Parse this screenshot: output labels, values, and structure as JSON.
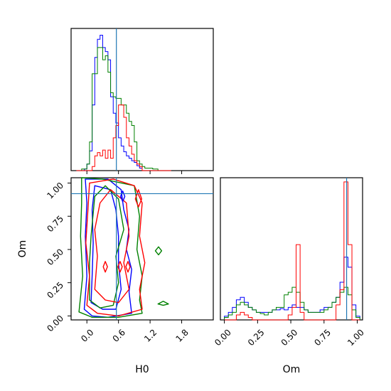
{
  "chart_data": {
    "type": "corner",
    "parameters": [
      "H0",
      "Om"
    ],
    "truth": {
      "H0": 0.56,
      "Om": 0.92
    },
    "colors": {
      "series_red": "#ff0000",
      "series_blue": "#0000ff",
      "series_green": "#008000",
      "truth": "#1f77b4"
    },
    "hist_H0": {
      "xlim": [
        -0.3,
        2.4
      ],
      "ticks": [
        "0.0",
        "0.6",
        "1.2",
        "1.8"
      ],
      "bins": [
        -0.2,
        -0.15,
        -0.1,
        -0.05,
        0.0,
        0.05,
        0.1,
        0.15,
        0.2,
        0.25,
        0.3,
        0.35,
        0.4,
        0.45,
        0.5,
        0.55,
        0.6,
        0.65,
        0.7,
        0.75,
        0.8,
        0.85,
        0.9,
        0.95,
        1.0,
        1.05,
        1.1,
        1.15,
        1.2,
        1.25,
        1.3,
        1.35,
        1.4,
        1.45,
        1.5,
        1.55,
        1.6
      ],
      "series": [
        {
          "color": "#0000ff",
          "counts": [
            0,
            0,
            0,
            2,
            8,
            24,
            80,
            138,
            160,
            165,
            150,
            145,
            135,
            90,
            70,
            58,
            40,
            30,
            23,
            18,
            15,
            12,
            10,
            6,
            3,
            0,
            0,
            0,
            0,
            0,
            0,
            0,
            0,
            0,
            0,
            0
          ]
        },
        {
          "color": "#008000",
          "counts": [
            0,
            0,
            2,
            2,
            8,
            35,
            118,
            118,
            150,
            150,
            135,
            140,
            120,
            95,
            90,
            88,
            88,
            80,
            80,
            70,
            60,
            55,
            35,
            12,
            8,
            5,
            3,
            3,
            3,
            2,
            2,
            0,
            0,
            0,
            0,
            0
          ]
        },
        {
          "color": "#ff0000",
          "counts": [
            0,
            0,
            0,
            0,
            0,
            0,
            5,
            18,
            22,
            18,
            25,
            15,
            25,
            15,
            40,
            55,
            80,
            80,
            65,
            40,
            30,
            20,
            12,
            8,
            5,
            0,
            0,
            0,
            0,
            0,
            0,
            0,
            0,
            0,
            0,
            0
          ]
        }
      ]
    },
    "hist_Om": {
      "xlim": [
        -0.03,
        1.04
      ],
      "ticks": [
        "0.00",
        "0.25",
        "0.50",
        "0.75",
        "1.00"
      ],
      "bins": [
        0.0,
        0.03,
        0.06,
        0.09,
        0.12,
        0.15,
        0.18,
        0.21,
        0.24,
        0.27,
        0.3,
        0.33,
        0.36,
        0.39,
        0.42,
        0.45,
        0.48,
        0.51,
        0.54,
        0.57,
        0.6,
        0.63,
        0.66,
        0.69,
        0.72,
        0.75,
        0.78,
        0.81,
        0.84,
        0.87,
        0.9,
        0.93,
        0.96,
        0.99,
        1.02
      ],
      "series": [
        {
          "color": "#0000ff",
          "counts": [
            3,
            6,
            10,
            16,
            18,
            14,
            10,
            8,
            6,
            6,
            6,
            6,
            8,
            8,
            9,
            8,
            10,
            12,
            10,
            10,
            8,
            6,
            6,
            6,
            8,
            10,
            10,
            14,
            18,
            30,
            50,
            42,
            12,
            3
          ]
        },
        {
          "color": "#008000",
          "counts": [
            2,
            4,
            6,
            12,
            14,
            12,
            10,
            8,
            6,
            5,
            4,
            6,
            8,
            10,
            10,
            20,
            22,
            26,
            22,
            14,
            8,
            6,
            6,
            6,
            6,
            8,
            10,
            14,
            18,
            22,
            26,
            20,
            8,
            2
          ]
        },
        {
          "color": "#ff0000",
          "counts": [
            0,
            0,
            0,
            4,
            6,
            4,
            2,
            0,
            0,
            0,
            0,
            0,
            0,
            0,
            0,
            0,
            4,
            10,
            60,
            6,
            0,
            0,
            0,
            0,
            0,
            0,
            0,
            0,
            12,
            24,
            110,
            60,
            0,
            0
          ]
        }
      ]
    },
    "joint": {
      "xlim": [
        -0.3,
        2.4
      ],
      "ylim": [
        -0.03,
        1.04
      ],
      "xticks": [
        "0.0",
        "0.6",
        "1.2",
        "1.8"
      ],
      "yticks": [
        "0.00",
        "0.25",
        "0.50",
        "0.75",
        "1.00"
      ],
      "xlabel": "H0",
      "ylabel": "Om",
      "contours": [
        {
          "color": "#0000ff",
          "points": [
            [
              -0.05,
              0.05
            ],
            [
              0.0,
              0.3
            ],
            [
              -0.03,
              0.6
            ],
            [
              0.0,
              0.85
            ],
            [
              -0.03,
              1.03
            ],
            [
              0.4,
              1.03
            ],
            [
              0.65,
              0.95
            ],
            [
              0.7,
              0.8
            ],
            [
              0.8,
              0.65
            ],
            [
              0.75,
              0.5
            ],
            [
              0.85,
              0.35
            ],
            [
              0.8,
              0.18
            ],
            [
              0.85,
              0.02
            ],
            [
              0.4,
              -0.01
            ],
            [
              0.1,
              0.0
            ]
          ]
        },
        {
          "color": "#0000ff",
          "points": [
            [
              0.08,
              0.1
            ],
            [
              0.1,
              0.3
            ],
            [
              0.12,
              0.55
            ],
            [
              0.1,
              0.8
            ],
            [
              0.15,
              0.98
            ],
            [
              0.45,
              0.95
            ],
            [
              0.55,
              0.8
            ],
            [
              0.6,
              0.6
            ],
            [
              0.6,
              0.4
            ],
            [
              0.65,
              0.2
            ],
            [
              0.55,
              0.05
            ],
            [
              0.3,
              0.05
            ]
          ]
        },
        {
          "color": "#008000",
          "points": [
            [
              -0.15,
              0.03
            ],
            [
              -0.08,
              0.3
            ],
            [
              -0.12,
              0.6
            ],
            [
              -0.1,
              0.85
            ],
            [
              -0.1,
              1.04
            ],
            [
              0.3,
              1.03
            ],
            [
              0.9,
              0.98
            ],
            [
              1.0,
              0.75
            ],
            [
              0.95,
              0.5
            ],
            [
              1.05,
              0.3
            ],
            [
              1.0,
              0.12
            ],
            [
              1.05,
              0.02
            ],
            [
              0.6,
              -0.01
            ],
            [
              0.1,
              -0.01
            ]
          ]
        },
        {
          "color": "#008000",
          "points": [
            [
              0.05,
              0.12
            ],
            [
              0.05,
              0.4
            ],
            [
              0.08,
              0.6
            ],
            [
              0.15,
              0.9
            ],
            [
              0.35,
              0.98
            ],
            [
              0.6,
              0.88
            ],
            [
              0.7,
              0.65
            ],
            [
              0.55,
              0.45
            ],
            [
              0.6,
              0.25
            ],
            [
              0.5,
              0.08
            ],
            [
              0.25,
              0.06
            ]
          ]
        },
        {
          "color": "#ff0000",
          "points": [
            [
              0.0,
              0.08
            ],
            [
              0.05,
              0.3
            ],
            [
              -0.02,
              0.55
            ],
            [
              0.02,
              0.8
            ],
            [
              0.05,
              1.0
            ],
            [
              0.5,
              1.03
            ],
            [
              0.9,
              0.98
            ],
            [
              1.05,
              0.85
            ],
            [
              1.0,
              0.6
            ],
            [
              1.1,
              0.4
            ],
            [
              1.0,
              0.2
            ],
            [
              1.05,
              0.05
            ],
            [
              0.6,
              0.0
            ],
            [
              0.2,
              0.02
            ]
          ]
        },
        {
          "color": "#ff0000",
          "points": [
            [
              0.15,
              0.2
            ],
            [
              0.2,
              0.45
            ],
            [
              0.15,
              0.65
            ],
            [
              0.25,
              0.85
            ],
            [
              0.45,
              0.95
            ],
            [
              0.75,
              0.85
            ],
            [
              0.8,
              0.6
            ],
            [
              0.7,
              0.4
            ],
            [
              0.8,
              0.2
            ],
            [
              0.6,
              0.1
            ],
            [
              0.35,
              0.12
            ]
          ]
        }
      ],
      "islands": [
        {
          "color": "#ff0000",
          "points": [
            [
              0.98,
              0.82
            ],
            [
              1.04,
              0.88
            ],
            [
              0.98,
              0.95
            ],
            [
              0.92,
              0.88
            ]
          ]
        },
        {
          "color": "#ff0000",
          "points": [
            [
              0.35,
              0.33
            ],
            [
              0.39,
              0.37
            ],
            [
              0.35,
              0.41
            ],
            [
              0.31,
              0.37
            ]
          ]
        },
        {
          "color": "#ff0000",
          "points": [
            [
              0.63,
              0.33
            ],
            [
              0.67,
              0.37
            ],
            [
              0.63,
              0.41
            ],
            [
              0.59,
              0.37
            ]
          ]
        },
        {
          "color": "#ff0000",
          "points": [
            [
              0.78,
              0.33
            ],
            [
              0.82,
              0.37
            ],
            [
              0.78,
              0.41
            ],
            [
              0.74,
              0.37
            ]
          ]
        },
        {
          "color": "#0000ff",
          "points": [
            [
              0.68,
              0.86
            ],
            [
              0.72,
              0.9
            ],
            [
              0.68,
              0.94
            ],
            [
              0.64,
              0.9
            ]
          ]
        },
        {
          "color": "#008000",
          "points": [
            [
              1.36,
              0.46
            ],
            [
              1.42,
              0.49
            ],
            [
              1.36,
              0.52
            ],
            [
              1.3,
              0.49
            ]
          ]
        },
        {
          "color": "#008000",
          "points": [
            [
              1.45,
              0.08
            ],
            [
              1.55,
              0.09
            ],
            [
              1.45,
              0.11
            ],
            [
              1.35,
              0.09
            ]
          ]
        }
      ]
    }
  }
}
